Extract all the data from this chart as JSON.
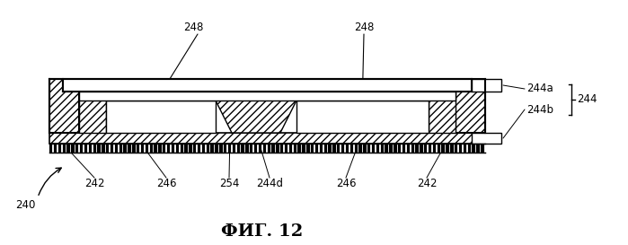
{
  "bg_color": "#ffffff",
  "line_color": "#000000",
  "fig_label": "ФИГ. 12",
  "label_248_left": "248",
  "label_248_right": "248",
  "label_244a": "244a",
  "label_244b": "244b",
  "label_244": "244",
  "label_242_left": "242",
  "label_242_right": "242",
  "label_246_left": "246",
  "label_246_right": "246",
  "label_254": "254",
  "label_244d": "244d",
  "label_240": "240"
}
